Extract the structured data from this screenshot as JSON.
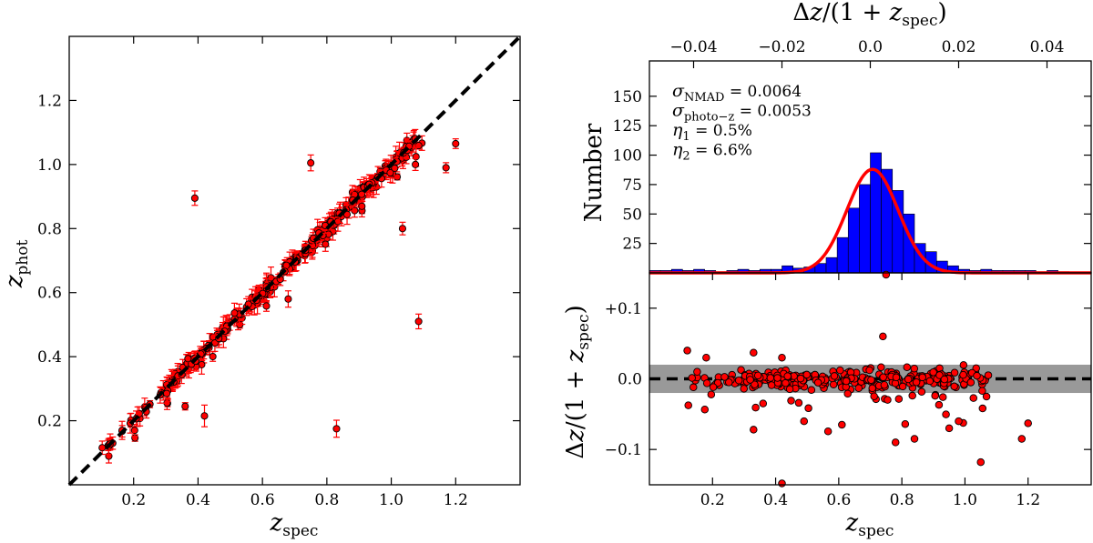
{
  "chart_data": [
    {
      "id": "zphot-vs-zspec",
      "type": "scatter",
      "xlabel": "z_spec",
      "ylabel": "z_phot",
      "xlim": [
        0.0,
        1.4
      ],
      "ylim": [
        0.0,
        1.4
      ],
      "xticks": [
        "0.2",
        "0.4",
        "0.6",
        "0.8",
        "1.0",
        "1.2"
      ],
      "yticks": [
        "0.2",
        "0.4",
        "0.6",
        "0.8",
        "1.0",
        "1.2"
      ],
      "grid": false,
      "reference_line": {
        "style": "dashed",
        "color": "#000000",
        "from": [
          0,
          0
        ],
        "to": [
          1.4,
          1.4
        ]
      },
      "marker_color": "#ff0000",
      "errorbar_color": "#ff0000",
      "outliers": [
        {
          "x": 0.39,
          "y": 0.895
        },
        {
          "x": 0.42,
          "y": 0.215
        },
        {
          "x": 0.75,
          "y": 1.005
        },
        {
          "x": 0.83,
          "y": 0.175
        },
        {
          "x": 1.035,
          "y": 0.8
        },
        {
          "x": 1.085,
          "y": 0.51
        },
        {
          "x": 1.17,
          "y": 0.99
        },
        {
          "x": 1.2,
          "y": 1.065
        },
        {
          "x": 0.36,
          "y": 0.245
        },
        {
          "x": 0.68,
          "y": 0.58
        },
        {
          "x": 1.075,
          "y": 1.0
        }
      ]
    },
    {
      "id": "residual-histogram",
      "type": "bar",
      "ylabel": "Number",
      "top_xlabel": "Δz/(1 + z_spec)",
      "top_xticks": [
        "−0.04",
        "−0.02",
        "0.0",
        "0.02",
        "0.04"
      ],
      "top_xtick_values": [
        -0.04,
        -0.02,
        0.0,
        0.02,
        0.04
      ],
      "xlim": [
        -0.05,
        0.05
      ],
      "ylim": [
        0,
        180
      ],
      "yticks": [
        "25",
        "50",
        "75",
        "100",
        "125",
        "150"
      ],
      "ytick_values": [
        25,
        50,
        75,
        100,
        125,
        150
      ],
      "bar_color": "#0000ff",
      "bin_edges": [
        -0.05,
        -0.0475,
        -0.045,
        -0.0425,
        -0.04,
        -0.0375,
        -0.035,
        -0.0325,
        -0.03,
        -0.0275,
        -0.025,
        -0.0225,
        -0.02,
        -0.0175,
        -0.015,
        -0.0125,
        -0.01,
        -0.0075,
        -0.005,
        -0.0025,
        0.0,
        0.0025,
        0.005,
        0.0075,
        0.01,
        0.0125,
        0.015,
        0.0175,
        0.02,
        0.0225,
        0.025,
        0.0275,
        0.03,
        0.0325,
        0.035,
        0.0375,
        0.04,
        0.0425,
        0.045
      ],
      "counts": [
        2,
        2,
        3,
        2,
        3,
        2,
        1,
        2,
        3,
        2,
        3,
        3,
        6,
        4,
        5,
        8,
        13,
        30,
        55,
        75,
        102,
        88,
        70,
        50,
        25,
        18,
        10,
        6,
        3,
        2,
        3,
        2,
        2,
        2,
        2,
        1,
        2,
        1
      ],
      "fit_curve": {
        "type": "gaussian",
        "color": "#ff0000",
        "amplitude": 88,
        "mean": 0.0005,
        "sigma": 0.0058
      },
      "annotations": [
        {
          "symbol": "σ",
          "sub": "NMAD",
          "value": " = 0.0064"
        },
        {
          "symbol": "σ",
          "sub": "photo−z",
          "value": " = 0.0053"
        },
        {
          "symbol": "η",
          "sub": "1",
          "value": " = 0.5%"
        },
        {
          "symbol": "η",
          "sub": "2",
          "value": " = 6.6%"
        }
      ]
    },
    {
      "id": "residual-vs-zspec",
      "type": "scatter",
      "xlabel": "z_spec",
      "ylabel": "Δz/(1 + z_spec)",
      "xlim": [
        0.0,
        1.4
      ],
      "ylim": [
        -0.15,
        0.15
      ],
      "xticks": [
        "0.2",
        "0.4",
        "0.6",
        "0.8",
        "1.0",
        "1.2"
      ],
      "xtick_values": [
        0.2,
        0.4,
        0.6,
        0.8,
        1.0,
        1.2
      ],
      "yticks": [
        "+0.1",
        "0.0",
        "−0.1"
      ],
      "ytick_values": [
        0.1,
        0.0,
        -0.1
      ],
      "shaded_band": {
        "from": -0.02,
        "to": 0.02,
        "color": "#999999"
      },
      "reference_line": {
        "style": "dashed",
        "color": "#000000",
        "y": 0.0
      },
      "marker_color": "#ff0000",
      "outliers": [
        {
          "x": 0.42,
          "y": -0.148
        },
        {
          "x": 0.74,
          "y": 0.06
        },
        {
          "x": 1.2,
          "y": -0.063
        },
        {
          "x": 1.18,
          "y": -0.085
        },
        {
          "x": 1.05,
          "y": -0.118
        },
        {
          "x": 0.33,
          "y": -0.072
        },
        {
          "x": 0.84,
          "y": -0.085
        },
        {
          "x": 0.95,
          "y": -0.07
        },
        {
          "x": 0.12,
          "y": 0.04
        },
        {
          "x": 0.33,
          "y": 0.037
        },
        {
          "x": 0.49,
          "y": -0.06
        },
        {
          "x": 0.78,
          "y": -0.09
        },
        {
          "x": 0.61,
          "y": -0.065
        },
        {
          "x": 0.98,
          "y": -0.06
        },
        {
          "x": 0.18,
          "y": 0.03
        },
        {
          "x": 0.42,
          "y": 0.03
        }
      ]
    }
  ]
}
